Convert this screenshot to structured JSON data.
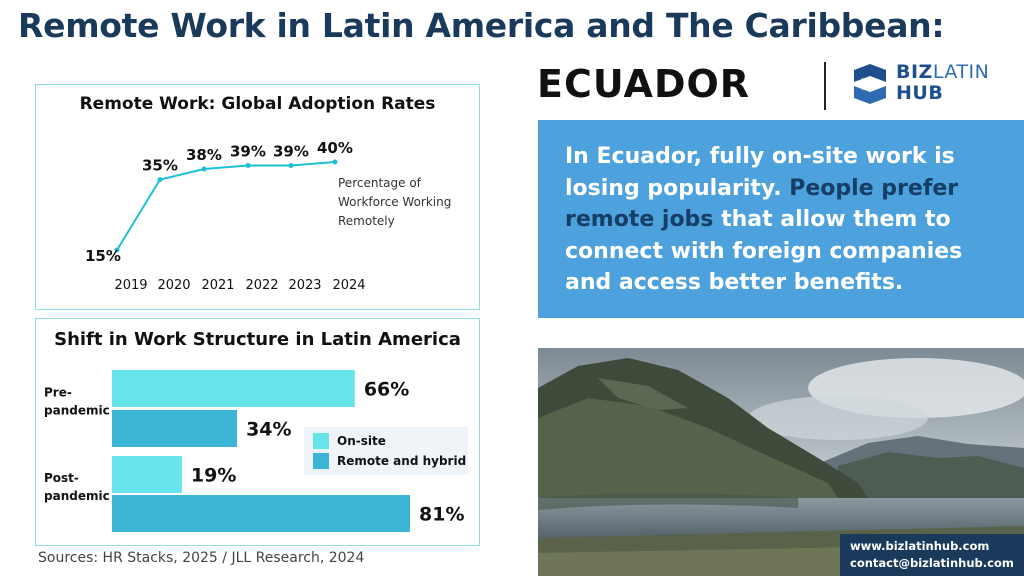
{
  "header": {
    "title": "Remote Work in Latin America and The Caribbean:",
    "subtitle": "ECUADOR",
    "logo_text_bold": "BIZ",
    "logo_text_light": "LATIN",
    "logo_text_line2": "HUB"
  },
  "colors": {
    "title_navy": "#1a3a5c",
    "line_cyan": "#1ec0d6",
    "bar_onsite": "#67e3ea",
    "bar_remote": "#3db5d6",
    "info_bg": "#4da1dd",
    "info_highlight": "#163e66",
    "panel_border": "#8edde6"
  },
  "chart_data": [
    {
      "type": "line",
      "title": "Remote Work: Global Adoption Rates",
      "x": [
        "2019",
        "2020",
        "2021",
        "2022",
        "2023",
        "2024"
      ],
      "values": [
        15,
        35,
        38,
        39,
        39,
        40
      ],
      "value_labels": [
        "15%",
        "35%",
        "38%",
        "39%",
        "39%",
        "40%"
      ],
      "ylim": [
        0,
        45
      ],
      "grid": false,
      "legend_text": "Percentage of Workforce Working Remotely",
      "legend_lines": [
        "Percentage of",
        "Workforce Working",
        "Remotely"
      ]
    },
    {
      "type": "bar",
      "orientation": "horizontal",
      "title": "Shift in Work Structure in Latin America",
      "categories": [
        "Pre-pandemic",
        "Post-pandemic"
      ],
      "category_lines": [
        [
          "Pre-",
          "pandemic"
        ],
        [
          "Post-",
          "pandemic"
        ]
      ],
      "series": [
        {
          "name": "On-site",
          "values": [
            66,
            19
          ],
          "labels": [
            "66%",
            "19%"
          ]
        },
        {
          "name": "Remote and hybrid",
          "values": [
            34,
            81
          ],
          "labels": [
            "34%",
            "81%"
          ]
        }
      ],
      "xlim": [
        0,
        81
      ],
      "legend_position": "right"
    }
  ],
  "info_box": {
    "text_before": "In Ecuador, fully on-site work is losing popularity. ",
    "highlight": "People prefer remote jobs",
    "text_after": " that allow them to connect with foreign companies and access better benefits."
  },
  "sources": "Sources: HR Stacks, 2025 /  JLL Research, 2024",
  "contact": {
    "website": "www.bizlatinhub.com",
    "email": "contact@bizlatinhub.com"
  }
}
